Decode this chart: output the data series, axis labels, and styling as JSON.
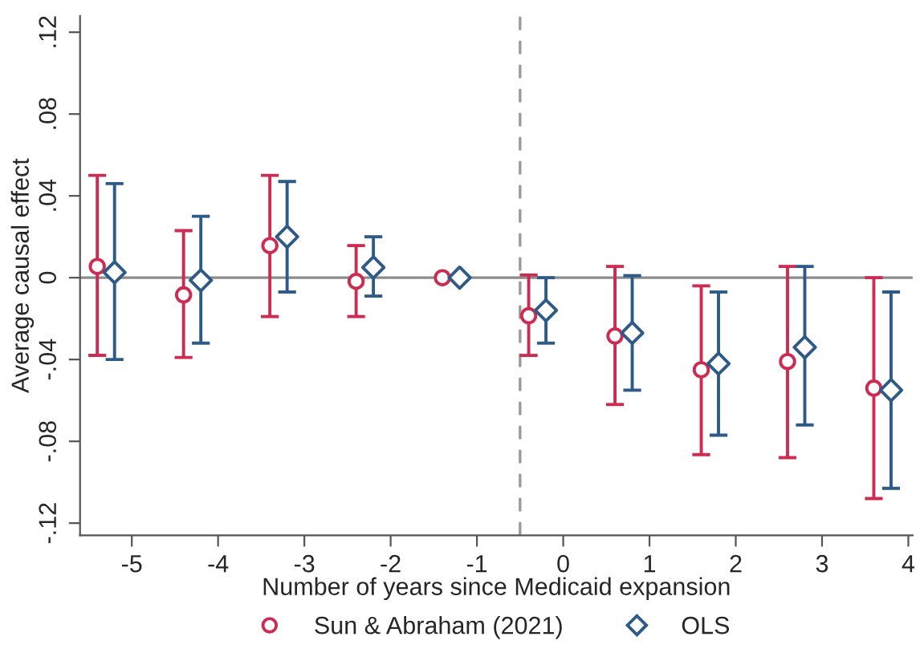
{
  "chart_data": {
    "type": "scatter",
    "xlabel": "Number of years since Medicaid expansion",
    "ylabel": "Average causal effect",
    "xlim": [
      -5.6,
      4.05
    ],
    "ylim": [
      -0.126,
      0.128
    ],
    "xticks": [
      -5,
      -4,
      -3,
      -2,
      -1,
      0,
      1,
      2,
      3,
      4
    ],
    "yticks": [
      {
        "value": -0.12,
        "label": "-.12"
      },
      {
        "value": -0.08,
        "label": "-.08"
      },
      {
        "value": -0.04,
        "label": "-.04"
      },
      0,
      {
        "value": 0.04,
        "label": ".04"
      },
      {
        "value": 0.08,
        "label": ".08"
      },
      {
        "value": 0.12,
        "label": ".12"
      }
    ],
    "grid": false,
    "legend": "bottom",
    "ref_lines": [
      {
        "axis": "y",
        "value": 0,
        "color": "#8c8c8c",
        "line_style": "solid"
      },
      {
        "axis": "x",
        "value": -0.5,
        "color": "#9a9a9a",
        "line_style": "dashed"
      }
    ],
    "series": [
      {
        "name": "Sun & Abraham (2021)",
        "color": "#cc2c52",
        "marker": "circle",
        "x": [
          -5.4,
          -4.4,
          -3.4,
          -2.4,
          -1.4,
          -0.4,
          0.6,
          1.6,
          2.6,
          3.6
        ],
        "values": [
          0.0055,
          -0.0084,
          0.0157,
          -0.0018,
          0,
          -0.0186,
          -0.0285,
          -0.045,
          -0.041,
          -0.054
        ],
        "errors": [
          [
            -0.038,
            0.05
          ],
          [
            -0.039,
            0.023
          ],
          [
            -0.019,
            0.05
          ],
          [
            -0.019,
            0.0157
          ],
          null,
          [
            -0.038,
            0.0013
          ],
          [
            -0.062,
            0.0055
          ],
          [
            -0.0865,
            -0.004
          ],
          [
            -0.088,
            0.0055
          ],
          [
            -0.108,
            0
          ]
        ]
      },
      {
        "name": "OLS",
        "color": "#2e5a87",
        "marker": "diamond",
        "x": [
          -5.2,
          -4.2,
          -3.2,
          -2.2,
          -1.2,
          -0.2,
          0.8,
          1.8,
          2.8,
          3.8
        ],
        "values": [
          0.0026,
          -0.0013,
          0.02,
          0.005,
          0,
          -0.016,
          -0.027,
          -0.042,
          -0.034,
          -0.055
        ],
        "errors": [
          [
            -0.04,
            0.046
          ],
          [
            -0.032,
            0.03
          ],
          [
            -0.007,
            0.047
          ],
          [
            -0.009,
            0.02
          ],
          null,
          [
            -0.032,
            0
          ],
          [
            -0.055,
            0.001
          ],
          [
            -0.077,
            -0.007
          ],
          [
            -0.072,
            0.0055
          ],
          [
            -0.103,
            -0.007
          ]
        ]
      }
    ]
  }
}
